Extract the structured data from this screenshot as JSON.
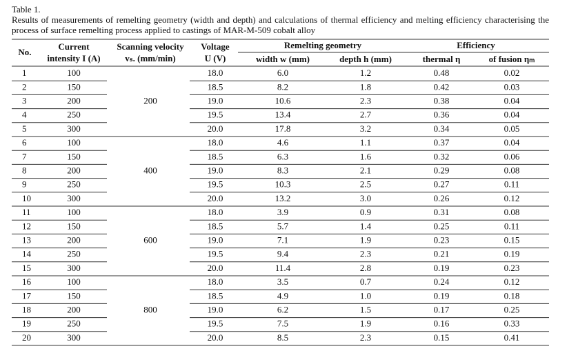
{
  "table_title": "Table 1.",
  "caption": "Results of measurements of remelting geometry (width and depth) and calculations of thermal efficiency and melting efficiency characterising the process of surface remelting process applied to castings of MAR-M-509 cobalt alloy",
  "header": {
    "no": "No.",
    "current": [
      "Current",
      "intensity I (A)"
    ],
    "velocity": [
      "Scanning velocity",
      "vₛ. (mm/min)"
    ],
    "voltage": [
      "Voltage",
      "U (V)"
    ],
    "geometry": "Remelting geometry",
    "width": "width w (mm)",
    "depth": "depth h (mm)",
    "efficiency": "Efficiency",
    "thermal": "thermal η",
    "fusion": "of fusion ηₘ"
  },
  "groups": [
    {
      "velocity": "200",
      "rows": [
        [
          "1",
          "100",
          "18.0",
          "6.0",
          "1.2",
          "0.48",
          "0.02"
        ],
        [
          "2",
          "150",
          "18.5",
          "8.2",
          "1.8",
          "0.42",
          "0.03"
        ],
        [
          "3",
          "200",
          "19.0",
          "10.6",
          "2.3",
          "0.38",
          "0.04"
        ],
        [
          "4",
          "250",
          "19.5",
          "13.4",
          "2.7",
          "0.36",
          "0.04"
        ],
        [
          "5",
          "300",
          "20.0",
          "17.8",
          "3.2",
          "0.34",
          "0.05"
        ]
      ]
    },
    {
      "velocity": "400",
      "rows": [
        [
          "6",
          "100",
          "18.0",
          "4.6",
          "1.1",
          "0.37",
          "0.04"
        ],
        [
          "7",
          "150",
          "18.5",
          "6.3",
          "1.6",
          "0.32",
          "0.06"
        ],
        [
          "8",
          "200",
          "19.0",
          "8.3",
          "2.1",
          "0.29",
          "0.08"
        ],
        [
          "9",
          "250",
          "19.5",
          "10.3",
          "2.5",
          "0.27",
          "0.11"
        ],
        [
          "10",
          "300",
          "20.0",
          "13.2",
          "3.0",
          "0.26",
          "0.12"
        ]
      ]
    },
    {
      "velocity": "600",
      "rows": [
        [
          "11",
          "100",
          "18.0",
          "3.9",
          "0.9",
          "0.31",
          "0.08"
        ],
        [
          "12",
          "150",
          "18.5",
          "5.7",
          "1.4",
          "0.25",
          "0.11"
        ],
        [
          "13",
          "200",
          "19.0",
          "7.1",
          "1.9",
          "0.23",
          "0.15"
        ],
        [
          "14",
          "250",
          "19.5",
          "9.4",
          "2.3",
          "0.21",
          "0.19"
        ],
        [
          "15",
          "300",
          "20.0",
          "11.4",
          "2.8",
          "0.19",
          "0.23"
        ]
      ]
    },
    {
      "velocity": "800",
      "rows": [
        [
          "16",
          "100",
          "18.0",
          "3.5",
          "0.7",
          "0.24",
          "0.12"
        ],
        [
          "17",
          "150",
          "18.5",
          "4.9",
          "1.0",
          "0.19",
          "0.18"
        ],
        [
          "18",
          "200",
          "19.0",
          "6.2",
          "1.5",
          "0.17",
          "0.25"
        ],
        [
          "19",
          "250",
          "19.5",
          "7.5",
          "1.9",
          "0.16",
          "0.33"
        ],
        [
          "20",
          "300",
          "20.0",
          "8.5",
          "2.3",
          "0.15",
          "0.41"
        ]
      ]
    }
  ]
}
